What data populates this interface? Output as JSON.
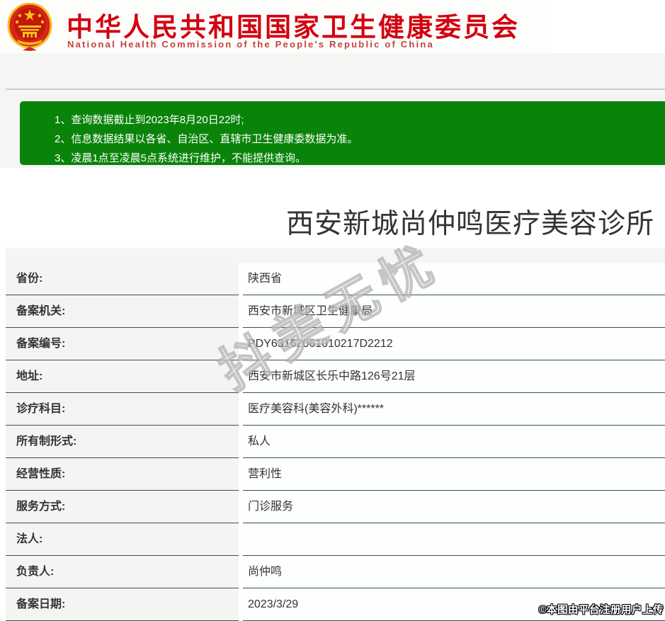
{
  "header": {
    "title_cn": "中华人民共和国国家卫生健康委员会",
    "title_en": "National Health Commission of the People's Republic of China",
    "emblem_icon": "prc-national-emblem",
    "brand_red": "#d2000f"
  },
  "notice": {
    "bg_color": "#0a830a",
    "lines": [
      "1、查询数据截止到2023年8月20日22时;",
      "2、信息数据结果以各省、自治区、直辖市卫生健康委数据为准。",
      "3、凌晨1点至凌晨5点系统进行维护，不能提供查询。"
    ]
  },
  "result": {
    "institution_title": "西安新城尚仲鸣医疗美容诊所",
    "fields": [
      {
        "label": "省份:",
        "value": "陕西省"
      },
      {
        "label": "备案机关:",
        "value": "西安市新城区卫生健康局"
      },
      {
        "label": "备案编号:",
        "value": "PDY63162061010217D2212"
      },
      {
        "label": "地址:",
        "value": "西安市新城区长乐中路126号21层"
      },
      {
        "label": "诊疗科目:",
        "value": "医疗美容科(美容外科)******"
      },
      {
        "label": "所有制形式:",
        "value": "私人"
      },
      {
        "label": "经营性质:",
        "value": "营利性"
      },
      {
        "label": "服务方式:",
        "value": "门诊服务"
      },
      {
        "label": "法人:",
        "value": ""
      },
      {
        "label": "负责人:",
        "value": "尚仲鸣"
      },
      {
        "label": "备案日期:",
        "value": "2023/3/29"
      }
    ],
    "table_border_color": "#2c5a49",
    "label_bg_color": "#f4f4f2"
  },
  "watermark": {
    "text": "抖美无忧"
  },
  "footer": {
    "copyright": "©本图由平台注册用户上传"
  }
}
